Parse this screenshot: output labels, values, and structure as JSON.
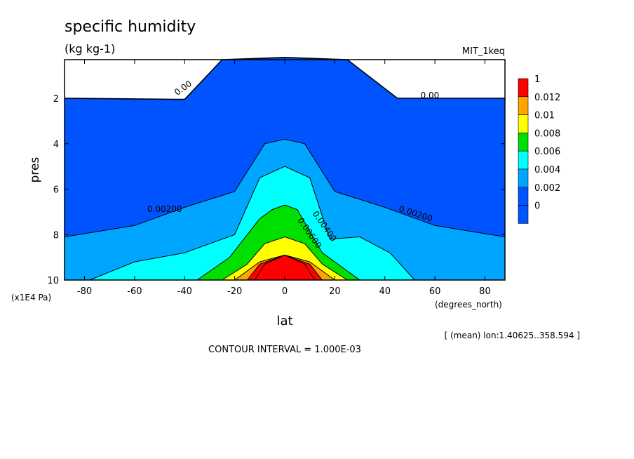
{
  "title": "specific humidity",
  "units": "(kg kg-1)",
  "dataset": "MIT_1keq",
  "x_unit_label": "(degrees_north)",
  "y_unit_label": "(x1E4 Pa)",
  "mean_note": "[ (mean) lon:1.40625..358.594 ]",
  "contour_interval": "CONTOUR INTERVAL = 1.000E-03",
  "colors": {
    "c0": "#0054ff",
    "c1": "#00a5ff",
    "c2": "#00ffff",
    "c3": "#00e000",
    "c4": "#ffff00",
    "c5": "#ffa500",
    "c6": "#ff0000"
  },
  "chart_data": {
    "type": "contour",
    "title": "specific humidity",
    "xlabel": "lat",
    "ylabel": "pres",
    "xlim": [
      -88,
      88
    ],
    "ylim": [
      10,
      0.3
    ],
    "x_ticks": [
      -80,
      -60,
      -40,
      -20,
      0,
      20,
      40,
      60,
      80
    ],
    "y_ticks": [
      2,
      4,
      6,
      8,
      10
    ],
    "legend": {
      "placement": "right",
      "labels": [
        "1",
        "0.012",
        "0.01",
        "0.008",
        "0.006",
        "0.004",
        "0.002",
        "0"
      ],
      "colors": [
        "#ff0000",
        "#ffa500",
        "#ffff00",
        "#00e000",
        "#00ffff",
        "#00a5ff",
        "#0054ff",
        "#0054ff"
      ]
    },
    "contour_labels": [
      "0.00",
      "0.00",
      "0.00200",
      "0.00200",
      "0.00400",
      "0.00600"
    ],
    "boundaries": {
      "q0": [
        [
          -88,
          2.0
        ],
        [
          -40,
          2.05
        ],
        [
          -25,
          0.3
        ],
        [
          0,
          0.2
        ],
        [
          25,
          0.3
        ],
        [
          45,
          2.0
        ],
        [
          88,
          2.0
        ]
      ],
      "q2": [
        [
          -88,
          8.1
        ],
        [
          -60,
          7.6
        ],
        [
          -40,
          6.8
        ],
        [
          -20,
          6.1
        ],
        [
          -8,
          4.0
        ],
        [
          0,
          3.8
        ],
        [
          8,
          4.0
        ],
        [
          20,
          6.1
        ],
        [
          40,
          6.8
        ],
        [
          60,
          7.6
        ],
        [
          88,
          8.1
        ]
      ],
      "q4": [
        [
          -78,
          10
        ],
        [
          -60,
          9.2
        ],
        [
          -40,
          8.8
        ],
        [
          -20,
          8.0
        ],
        [
          -10,
          5.5
        ],
        [
          0,
          5.0
        ],
        [
          10,
          5.5
        ],
        [
          18,
          8.2
        ],
        [
          30,
          8.1
        ],
        [
          42,
          8.8
        ],
        [
          52,
          10
        ]
      ],
      "q6": [
        [
          -35,
          10
        ],
        [
          -22,
          9.0
        ],
        [
          -10,
          7.3
        ],
        [
          -5,
          6.9
        ],
        [
          0,
          6.7
        ],
        [
          5,
          6.9
        ],
        [
          15,
          8.8
        ],
        [
          30,
          10
        ]
      ],
      "q8": [
        [
          -25,
          10
        ],
        [
          -15,
          9.3
        ],
        [
          -8,
          8.4
        ],
        [
          0,
          8.1
        ],
        [
          8,
          8.4
        ],
        [
          15,
          9.3
        ],
        [
          25,
          10
        ]
      ],
      "q10": [
        [
          -20,
          10
        ],
        [
          -10,
          9.2
        ],
        [
          0,
          8.9
        ],
        [
          10,
          9.2
        ],
        [
          20,
          10
        ]
      ],
      "q12": [
        [
          -15,
          10
        ],
        [
          -10,
          9.3
        ],
        [
          0,
          8.9
        ],
        [
          10,
          9.3
        ],
        [
          15,
          10
        ]
      ],
      "q_max": [
        [
          -12,
          10
        ],
        [
          -8,
          9.3
        ],
        [
          0,
          8.9
        ],
        [
          8,
          9.3
        ],
        [
          12,
          10
        ]
      ]
    }
  }
}
